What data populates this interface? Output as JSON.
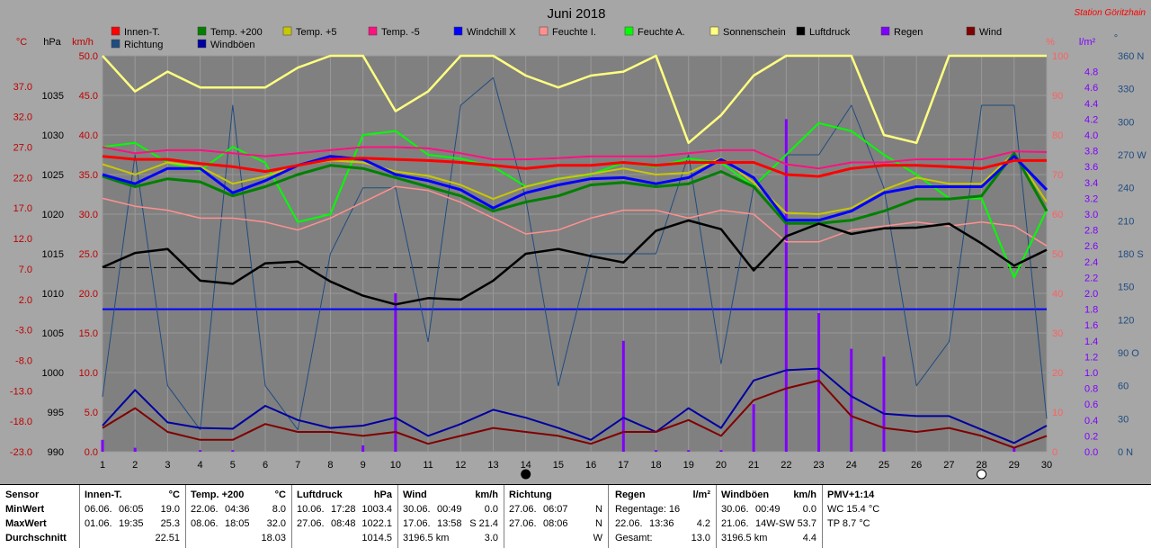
{
  "chart_data": {
    "type": "line",
    "title": "Juni 2018",
    "station": "Station Göritzhain",
    "colors": {
      "innen": "#ff0000",
      "t200": "#008000",
      "t5": "#c8c800",
      "tm5": "#ff1080",
      "windchill": "#0000ff",
      "feuchteI": "#ff9090",
      "feuchteA": "#00ff00",
      "sonne": "#ffff80",
      "luftdruck": "#000000",
      "regen": "#8000ff",
      "wind": "#800000",
      "richtung": "#204c80",
      "windboeen": "#0000a0"
    },
    "legend": [
      {
        "key": "innen",
        "label": "Innen-T."
      },
      {
        "key": "t200",
        "label": "Temp. +200"
      },
      {
        "key": "t5",
        "label": "Temp. +5"
      },
      {
        "key": "tm5",
        "label": "Temp. -5"
      },
      {
        "key": "windchill",
        "label": "Windchill X"
      },
      {
        "key": "feuchteI",
        "label": "Feuchte I."
      },
      {
        "key": "feuchteA",
        "label": "Feuchte A."
      },
      {
        "key": "sonne",
        "label": "Sonnenschein"
      },
      {
        "key": "luftdruck",
        "label": "Luftdruck"
      },
      {
        "key": "regen",
        "label": "Regen"
      },
      {
        "key": "wind",
        "label": "Wind"
      },
      {
        "key": "richtung",
        "label": "Richtung"
      },
      {
        "key": "windboeen",
        "label": "Windböen"
      }
    ],
    "axis_units": {
      "temp": "°C",
      "hpa": "hPa",
      "kmh": "km/h",
      "pct": "%",
      "lm2": "l/m²",
      "deg": "°"
    },
    "axes": {
      "temp": {
        "min": -23,
        "max": 42,
        "ticks": [
          "37.0",
          "32.0",
          "27.0",
          "22.0",
          "17.0",
          "12.0",
          "7.0",
          "2.0",
          "-3.0",
          "-8.0",
          "-13.0",
          "-18.0",
          "-23.0"
        ]
      },
      "hpa": {
        "min": 990,
        "max": 1040,
        "ticks": [
          "1035",
          "1030",
          "1025",
          "1020",
          "1015",
          "1010",
          "1005",
          "1000",
          "995",
          "990"
        ]
      },
      "kmh": {
        "min": 0,
        "max": 50,
        "ticks": [
          "50.0",
          "45.0",
          "40.0",
          "35.0",
          "30.0",
          "25.0",
          "20.0",
          "15.0",
          "10.0",
          "5.0",
          "0.0"
        ]
      },
      "pct": {
        "min": 0,
        "max": 100,
        "ticks": [
          "100",
          "90",
          "80",
          "70",
          "60",
          "50",
          "40",
          "30",
          "20",
          "10",
          "0"
        ]
      },
      "lm2": {
        "min": 0,
        "max": 5,
        "ticks": [
          "4.8",
          "4.6",
          "4.4",
          "4.2",
          "4.0",
          "3.8",
          "3.6",
          "3.4",
          "3.2",
          "3.0",
          "2.8",
          "2.6",
          "2.4",
          "2.2",
          "2.0",
          "1.8",
          "1.6",
          "1.4",
          "1.2",
          "1.0",
          "0.8",
          "0.6",
          "0.4",
          "0.2",
          "0.0"
        ]
      },
      "deg": {
        "min": 0,
        "max": 360,
        "ticks": [
          "360 N",
          "330",
          "300",
          "270 W",
          "240",
          "210",
          "180 S",
          "150",
          "120",
          "90 O",
          "60",
          "30",
          "0 N"
        ]
      }
    },
    "x": [
      "1",
      "2",
      "3",
      "4",
      "5",
      "6",
      "7",
      "8",
      "9",
      "10",
      "11",
      "12",
      "13",
      "14",
      "15",
      "16",
      "17",
      "18",
      "19",
      "20",
      "21",
      "22",
      "23",
      "24",
      "25",
      "26",
      "27",
      "28",
      "29",
      "30"
    ],
    "series": {
      "innen": [
        25.5,
        25,
        25,
        24.3,
        23.8,
        23,
        24,
        25,
        25.2,
        25,
        24.8,
        24.5,
        24,
        23.5,
        24,
        24,
        24.5,
        24,
        24.5,
        24.5,
        24.5,
        22.5,
        22.2,
        23.5,
        24,
        24,
        23.8,
        23.5,
        24.8,
        24.8
      ],
      "t200": [
        22.2,
        20.5,
        21.8,
        21.3,
        19,
        20.5,
        22.5,
        24,
        23.5,
        22,
        20.5,
        19,
        16.5,
        18,
        19,
        20.8,
        21.2,
        20.5,
        21,
        23,
        20.5,
        14.5,
        14.5,
        15,
        16.5,
        18.5,
        18.5,
        19,
        26,
        16.5
      ],
      "t5": [
        24.2,
        22.5,
        24.5,
        23.8,
        21,
        22.2,
        24,
        24.8,
        24.5,
        23,
        22.3,
        20.8,
        18.5,
        20.5,
        21.8,
        22.6,
        23.5,
        22.5,
        22.8,
        25.2,
        21.2,
        16.2,
        16,
        17,
        20,
        22,
        21,
        21,
        26,
        18
      ],
      "tm5": [
        27,
        26,
        26.5,
        26.5,
        26,
        25.5,
        26,
        26.5,
        27,
        27,
        26.8,
        26,
        25,
        25,
        25.2,
        25.5,
        25.5,
        25.5,
        26,
        26.5,
        26.5,
        24.2,
        23.5,
        24.5,
        24.5,
        25,
        25,
        25,
        26.3,
        26.2
      ],
      "windchill": [
        22.5,
        21,
        23.5,
        23.5,
        19.5,
        21.5,
        24,
        25.5,
        25,
        22.5,
        21.5,
        20,
        17,
        19.5,
        20.8,
        21.8,
        22,
        21,
        22,
        25,
        22,
        15,
        15,
        16.5,
        19.5,
        20.5,
        20.5,
        20.5,
        25.5,
        20
      ],
      "feuchteI": [
        64,
        62,
        61,
        59,
        59,
        58,
        56,
        59,
        63,
        67,
        66,
        63,
        59,
        55,
        56,
        59,
        61,
        61,
        59,
        61,
        60,
        53,
        53,
        56,
        57,
        58,
        57,
        58,
        57,
        52
      ],
      "feuchteA": [
        77,
        78,
        73,
        71,
        77,
        73,
        58,
        60,
        80,
        81,
        75,
        74,
        72,
        67,
        69,
        70,
        73,
        72,
        74,
        73,
        67,
        75,
        83,
        81,
        75,
        70,
        64,
        64,
        44,
        61
      ],
      "sonne": [
        100,
        91,
        96,
        92,
        92,
        92,
        97,
        100,
        100,
        86,
        91,
        100,
        100,
        95,
        92,
        95,
        96,
        100,
        78,
        85,
        95,
        100,
        100,
        100,
        80,
        78,
        100,
        100,
        100,
        100
      ],
      "luftdruck": [
        1013.3,
        1015.1,
        1015.6,
        1011.6,
        1011.2,
        1013.8,
        1014,
        1011.5,
        1009.7,
        1008.6,
        1009.4,
        1009.2,
        1011.6,
        1015,
        1015.6,
        1014.7,
        1013.9,
        1017.9,
        1019.2,
        1018.1,
        1012.9,
        1017.2,
        1018.8,
        1017.5,
        1018.2,
        1018.3,
        1018.8,
        1016.3,
        1013.5,
        1015.5
      ],
      "regen": [
        0.15,
        0.05,
        0,
        0.02,
        0.02,
        0,
        0,
        0,
        0.08,
        2.0,
        0,
        0,
        0,
        0,
        0,
        0,
        1.4,
        0.02,
        0.02,
        0.02,
        0.6,
        4.2,
        1.75,
        1.3,
        1.2,
        0,
        0,
        0,
        0.05,
        0
      ],
      "wind": [
        3,
        5.5,
        2.5,
        1.5,
        1.5,
        3.5,
        2.5,
        2.5,
        2,
        2.5,
        1,
        2,
        3,
        2.5,
        2,
        1,
        2.5,
        2.5,
        4,
        2,
        6.5,
        8,
        9,
        4.5,
        3,
        2.5,
        3,
        2,
        0.5,
        2
      ],
      "windboeen": [
        3.3,
        7.8,
        3.7,
        3,
        2.9,
        5.8,
        4,
        3,
        3.3,
        4.3,
        2,
        3.5,
        5.3,
        4.3,
        3,
        1.5,
        4.3,
        2.5,
        5.5,
        3,
        9,
        10.3,
        10.5,
        7,
        4.8,
        4.5,
        4.5,
        2.8,
        1.1,
        3.3
      ],
      "richtung": [
        50,
        270,
        60,
        20,
        315,
        60,
        20,
        180,
        240,
        240,
        100,
        315,
        340,
        230,
        60,
        180,
        180,
        180,
        270,
        80,
        240,
        270,
        270,
        315,
        240,
        60,
        100,
        315,
        315,
        30
      ]
    },
    "reference_lines": [
      {
        "axis": "hpa",
        "value": 1013.25
      },
      {
        "axis": "kmh",
        "value": 18
      }
    ],
    "moon": [
      {
        "day": "14",
        "phase": "new"
      },
      {
        "day": "28",
        "phase": "full"
      }
    ]
  },
  "stats": {
    "labels": {
      "sensor": "Sensor",
      "min": "MinWert",
      "max": "MaxWert",
      "avg": "Durchschnitt"
    },
    "blocks": [
      {
        "name": "Innen-T.",
        "unit": "°C",
        "min_date": "06.06.",
        "min_time": "06:05",
        "min_val": "19.0",
        "max_date": "01.06.",
        "max_time": "19:35",
        "max_val": "25.3",
        "avg": "22.51"
      },
      {
        "name": "Temp. +200",
        "unit": "°C",
        "min_date": "22.06.",
        "min_time": "04:36",
        "min_val": "8.0",
        "max_date": "08.06.",
        "max_time": "18:05",
        "max_val": "32.0",
        "avg": "18.03"
      },
      {
        "name": "Luftdruck",
        "unit": "hPa",
        "min_date": "10.06.",
        "min_time": "17:28",
        "min_val": "1003.4",
        "max_date": "27.06.",
        "max_time": "08:48",
        "max_val": "1022.1",
        "avg": "1014.5"
      },
      {
        "name": "Wind",
        "unit": "km/h",
        "min_date": "30.06.",
        "min_time": "00:49",
        "min_val": "0.0",
        "max_date": "17.06.",
        "max_time": "13:58",
        "max_val": "S 21.4",
        "avg_label": "3196.5 km",
        "avg": "3.0"
      },
      {
        "name": "Richtung",
        "unit": "",
        "min_date": "27.06.",
        "min_time": "06:07",
        "min_val": "N",
        "max_date": "27.06.",
        "max_time": "08:06",
        "max_val": "N",
        "avg": "W"
      },
      {
        "name": "Regen",
        "unit": "l/m²",
        "min_text": "Regentage: 16",
        "max_date": "22.06.",
        "max_time": "13:36",
        "max_val": "4.2",
        "avg_label": "Gesamt:",
        "avg": "13.0"
      },
      {
        "name": "Windböen",
        "unit": "km/h",
        "min_date": "30.06.",
        "min_time": "00:49",
        "min_val": "0.0",
        "max_date": "21.06.",
        "max_time": "14W-SW",
        "max_val": "53.7",
        "avg_label": "3196.5 km",
        "avg": "4.4"
      },
      {
        "name": "PMV+1:14",
        "unit": "",
        "line1": "WC 15.4 °C",
        "line2": "TP 8.7 °C"
      }
    ]
  }
}
